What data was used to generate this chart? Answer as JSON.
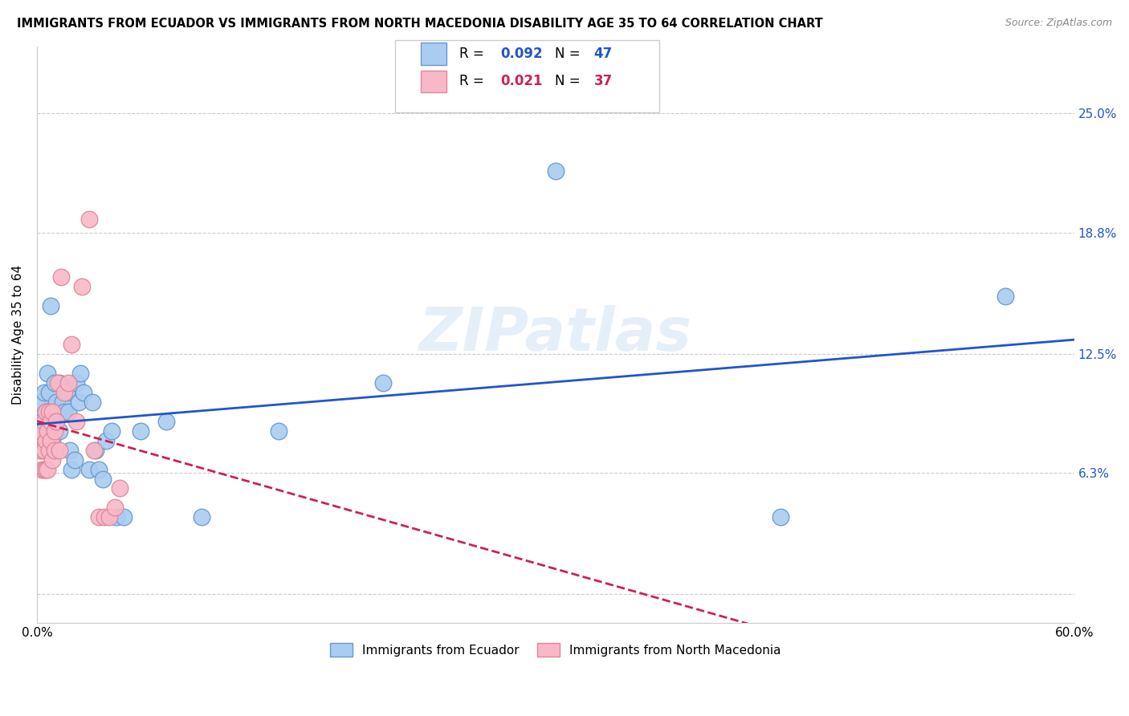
{
  "title": "IMMIGRANTS FROM ECUADOR VS IMMIGRANTS FROM NORTH MACEDONIA DISABILITY AGE 35 TO 64 CORRELATION CHART",
  "source": "Source: ZipAtlas.com",
  "ylabel_label": "Disability Age 35 to 64",
  "ylabel_ticks": [
    0.0,
    0.063,
    0.125,
    0.188,
    0.25
  ],
  "ylabel_tick_labels": [
    "",
    "6.3%",
    "12.5%",
    "18.8%",
    "25.0%"
  ],
  "xmin": 0.0,
  "xmax": 0.6,
  "ymin": -0.015,
  "ymax": 0.285,
  "ecuador_color": "#aaccf0",
  "ecuador_edge_color": "#6699cc",
  "macedonia_color": "#f9b8c8",
  "macedonia_edge_color": "#dd8899",
  "ecuador_line_color": "#2255cc",
  "macedonia_line_color": "#cc2255",
  "legend_r_ecuador": "R = 0.092",
  "legend_n_ecuador": "N = 47",
  "legend_r_macedonia": "R = 0.021",
  "legend_n_macedonia": "N = 37",
  "legend_label_ecuador": "Immigrants from Ecuador",
  "legend_label_macedonia": "Immigrants from North Macedonia",
  "watermark": "ZIPatlas",
  "ecuador_x": [
    0.002,
    0.003,
    0.004,
    0.005,
    0.005,
    0.006,
    0.006,
    0.007,
    0.007,
    0.008,
    0.009,
    0.009,
    0.01,
    0.01,
    0.011,
    0.012,
    0.013,
    0.013,
    0.014,
    0.015,
    0.016,
    0.017,
    0.018,
    0.019,
    0.02,
    0.022,
    0.023,
    0.024,
    0.025,
    0.027,
    0.03,
    0.032,
    0.034,
    0.036,
    0.038,
    0.04,
    0.043,
    0.046,
    0.05,
    0.06,
    0.075,
    0.095,
    0.14,
    0.2,
    0.3,
    0.43,
    0.56
  ],
  "ecuador_y": [
    0.1,
    0.09,
    0.105,
    0.095,
    0.085,
    0.115,
    0.09,
    0.105,
    0.08,
    0.15,
    0.095,
    0.08,
    0.11,
    0.09,
    0.1,
    0.095,
    0.11,
    0.085,
    0.095,
    0.1,
    0.095,
    0.105,
    0.095,
    0.075,
    0.065,
    0.07,
    0.11,
    0.1,
    0.115,
    0.105,
    0.065,
    0.1,
    0.075,
    0.065,
    0.06,
    0.08,
    0.085,
    0.04,
    0.04,
    0.085,
    0.09,
    0.04,
    0.085,
    0.11,
    0.22,
    0.04,
    0.155
  ],
  "macedonia_x": [
    0.001,
    0.002,
    0.002,
    0.003,
    0.003,
    0.004,
    0.004,
    0.004,
    0.005,
    0.005,
    0.005,
    0.006,
    0.006,
    0.007,
    0.007,
    0.008,
    0.008,
    0.009,
    0.009,
    0.01,
    0.01,
    0.011,
    0.012,
    0.013,
    0.014,
    0.016,
    0.018,
    0.02,
    0.023,
    0.026,
    0.03,
    0.033,
    0.036,
    0.039,
    0.042,
    0.045,
    0.048
  ],
  "macedonia_y": [
    0.08,
    0.085,
    0.075,
    0.075,
    0.065,
    0.09,
    0.075,
    0.065,
    0.095,
    0.08,
    0.065,
    0.085,
    0.065,
    0.095,
    0.075,
    0.09,
    0.08,
    0.095,
    0.07,
    0.085,
    0.075,
    0.09,
    0.11,
    0.075,
    0.165,
    0.105,
    0.11,
    0.13,
    0.09,
    0.16,
    0.195,
    0.075,
    0.04,
    0.04,
    0.04,
    0.045,
    0.055
  ],
  "ecuador_R": 0.092,
  "macedonia_R": 0.021
}
